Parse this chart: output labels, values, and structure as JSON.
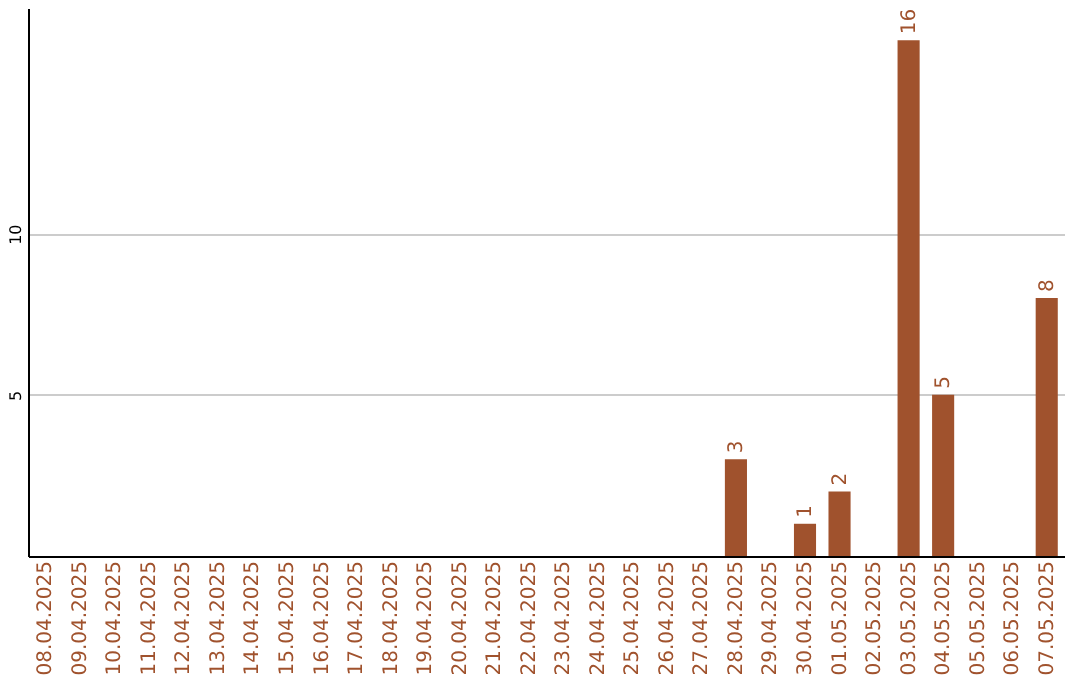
{
  "chart_data": {
    "type": "bar",
    "categories": [
      "08.04.2025",
      "09.04.2025",
      "10.04.2025",
      "11.04.2025",
      "12.04.2025",
      "13.04.2025",
      "14.04.2025",
      "15.04.2025",
      "16.04.2025",
      "17.04.2025",
      "18.04.2025",
      "19.04.2025",
      "20.04.2025",
      "21.04.2025",
      "22.04.2025",
      "23.04.2025",
      "24.04.2025",
      "25.04.2025",
      "26.04.2025",
      "27.04.2025",
      "28.04.2025",
      "29.04.2025",
      "30.04.2025",
      "01.05.2025",
      "02.05.2025",
      "03.05.2025",
      "04.05.2025",
      "05.05.2025",
      "06.05.2025",
      "07.05.2025"
    ],
    "values": [
      0,
      0,
      0,
      0,
      0,
      0,
      0,
      0,
      0,
      0,
      0,
      0,
      0,
      0,
      0,
      0,
      0,
      0,
      0,
      0,
      3,
      0,
      1,
      2,
      0,
      16,
      5,
      0,
      0,
      8
    ],
    "value_labels": [
      null,
      null,
      null,
      null,
      null,
      null,
      null,
      null,
      null,
      null,
      null,
      null,
      null,
      null,
      null,
      null,
      null,
      null,
      null,
      null,
      "3",
      null,
      "1",
      "2",
      null,
      "16",
      "5",
      null,
      null,
      "8"
    ],
    "color": "#a0522d",
    "ylim": [
      0,
      17
    ],
    "yticks": [
      5,
      10
    ],
    "grid": "y"
  }
}
